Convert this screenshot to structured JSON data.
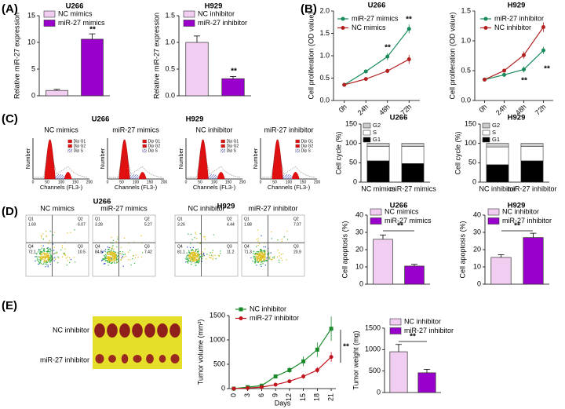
{
  "panel_labels": [
    "(A)",
    "(B)",
    "(C)",
    "(D)",
    "(E)"
  ],
  "chart_data": [
    {
      "type": "bar",
      "title": "U266",
      "y_label": "Relative miR-27 expression",
      "ylim": [
        0,
        15
      ],
      "yticks": [
        0,
        5,
        10,
        15
      ],
      "series": [
        {
          "name": "NC mimics",
          "color": "#f2cdf2",
          "values": [
            1.0
          ],
          "errors": [
            0.2
          ]
        },
        {
          "name": "miR-27 mimics",
          "color": "#9a00cc",
          "values": [
            10.6
          ],
          "errors": [
            1.0
          ]
        }
      ],
      "annotations": [
        "**"
      ]
    },
    {
      "type": "bar",
      "title": "H929",
      "y_label": "Relative miR-27 expression",
      "ylim": [
        0,
        1.5
      ],
      "yticks": [
        {
          "value": 0,
          "label": "0.0"
        },
        0.5,
        {
          "value": 1,
          "label": "1.0"
        },
        1.5
      ],
      "series": [
        {
          "name": "NC inhibitor",
          "color": "#f2cdf2",
          "values": [
            1.0
          ],
          "errors": [
            0.12
          ]
        },
        {
          "name": "miR-27 inhibitor",
          "color": "#9a00cc",
          "values": [
            0.32
          ],
          "errors": [
            0.04
          ]
        }
      ],
      "annotations": [
        "**"
      ]
    },
    {
      "type": "line",
      "title": "U266",
      "y_label": "Cell proliferation (OD value)",
      "categories": [
        "0h",
        "24h",
        "48h",
        "72h"
      ],
      "ylim": [
        0,
        2
      ],
      "yticks": [
        {
          "value": 0,
          "label": "0.0"
        },
        0.5,
        {
          "value": 1,
          "label": "1.0"
        },
        1.5,
        {
          "value": 2,
          "label": "2.0"
        }
      ],
      "series": [
        {
          "name": "miR-27 mimics",
          "color": "#1a8a5a",
          "marker": "circle",
          "values": [
            0.35,
            0.65,
            0.98,
            1.6
          ],
          "errors": [
            0.02,
            0.04,
            0.08,
            0.1
          ]
        },
        {
          "name": "NC mimics",
          "color": "#b22222",
          "marker": "circle",
          "values": [
            0.35,
            0.48,
            0.66,
            0.92
          ],
          "errors": [
            0.02,
            0.03,
            0.05,
            0.1
          ]
        }
      ],
      "annotations": [
        "**",
        "**"
      ]
    },
    {
      "type": "line",
      "title": "H929",
      "y_label": "Cell proliferation (OD value)",
      "categories": [
        "0h",
        "24h",
        "48h",
        "72h"
      ],
      "ylim": [
        0,
        1.5
      ],
      "yticks": [
        {
          "value": 0,
          "label": "0.0"
        },
        0.5,
        {
          "value": 1,
          "label": "1.0"
        },
        1.5
      ],
      "series": [
        {
          "name": "miR-27 inhibitor",
          "color": "#1a8a5a",
          "marker": "circle",
          "values": [
            0.35,
            0.43,
            0.52,
            0.84
          ],
          "errors": [
            0.02,
            0.03,
            0.05,
            0.06
          ]
        },
        {
          "name": "NC inhibitor",
          "color": "#b22222",
          "marker": "circle",
          "values": [
            0.35,
            0.5,
            0.76,
            1.23
          ],
          "errors": [
            0.02,
            0.03,
            0.06,
            0.08
          ]
        }
      ],
      "annotations": [
        "**",
        "**"
      ]
    },
    {
      "type": "stacked_bar",
      "title": "U266",
      "y_label": "Cell cycle (%)",
      "categories": [
        "NC mimics",
        "miR-27 mimics"
      ],
      "ylim": [
        0,
        150
      ],
      "yticks": [
        0,
        50,
        100,
        150
      ],
      "series": [
        {
          "name": "G2",
          "color": "#cccccc",
          "values": [
            8,
            8
          ]
        },
        {
          "name": "S",
          "color": "#ffffff",
          "values": [
            37,
            44
          ]
        },
        {
          "name": "G1",
          "color": "#000000",
          "values": [
            55,
            48
          ]
        }
      ]
    },
    {
      "type": "stacked_bar",
      "title": "H929",
      "y_label": "Cell cycle (%)",
      "categories": [
        "NC inhibitor",
        "miR-27 inhibitor"
      ],
      "ylim": [
        0,
        150
      ],
      "yticks": [
        0,
        50,
        100,
        150
      ],
      "series": [
        {
          "name": "G2",
          "color": "#cccccc",
          "values": [
            9,
            8
          ]
        },
        {
          "name": "S",
          "color": "#ffffff",
          "values": [
            46,
            37
          ]
        },
        {
          "name": "G1",
          "color": "#000000",
          "values": [
            45,
            55
          ]
        }
      ]
    },
    {
      "type": "bar",
      "title": "U266",
      "y_label": "Cell apoptosis (%)",
      "ylim": [
        0,
        40
      ],
      "yticks": [
        0,
        10,
        20,
        30,
        40
      ],
      "series": [
        {
          "name": "NC mimics",
          "color": "#f2cdf2",
          "values": [
            26
          ],
          "errors": [
            2.5
          ]
        },
        {
          "name": "miR-27 mimics",
          "color": "#9a00cc",
          "values": [
            10.5
          ],
          "errors": [
            1
          ]
        }
      ],
      "annotations": [
        "**"
      ]
    },
    {
      "type": "bar",
      "title": "H929",
      "y_label": "Cell apoptosis (%)",
      "ylim": [
        0,
        40
      ],
      "yticks": [
        0,
        10,
        20,
        30,
        40
      ],
      "series": [
        {
          "name": "NC inhibitor",
          "color": "#f2cdf2",
          "values": [
            15.5
          ],
          "errors": [
            1.5
          ]
        },
        {
          "name": "miR-27 inhibitor",
          "color": "#9a00cc",
          "values": [
            27
          ],
          "errors": [
            2.5
          ]
        }
      ],
      "annotations": [
        "**"
      ]
    },
    {
      "type": "line",
      "x_label": "Days",
      "y_label": "Tumor volume (mm³)",
      "x": [
        0,
        3,
        6,
        9,
        12,
        15,
        18,
        21
      ],
      "xlim": [
        -1,
        22
      ],
      "xticks": [
        0,
        3,
        6,
        9,
        12,
        15,
        18,
        21
      ],
      "ylim": [
        0,
        1500
      ],
      "yticks": [
        0,
        500,
        1000,
        1500
      ],
      "series": [
        {
          "name": "NC inhibitor",
          "color": "#1a8a2a",
          "marker": "square",
          "values": [
            0,
            30,
            60,
            250,
            380,
            560,
            800,
            1230
          ],
          "errors": [
            0,
            10,
            20,
            40,
            60,
            100,
            150,
            250
          ]
        },
        {
          "name": "miR-27 inhibitor",
          "color": "#c0141e",
          "marker": "circle",
          "values": [
            0,
            10,
            30,
            80,
            150,
            250,
            380,
            650
          ],
          "errors": [
            0,
            5,
            10,
            20,
            30,
            50,
            60,
            100
          ]
        }
      ],
      "annotations": [
        "**"
      ]
    },
    {
      "type": "bar",
      "y_label": "Tumor weight (mg)",
      "ylim": [
        0,
        1500
      ],
      "yticks": [
        0,
        500,
        1000,
        1500
      ],
      "series": [
        {
          "name": "NC inhibitor",
          "color": "#f2cdf2",
          "values": [
            950
          ],
          "errors": [
            170
          ]
        },
        {
          "name": "miR-27 inhibitor",
          "color": "#9a00cc",
          "values": [
            460
          ],
          "errors": [
            80
          ]
        }
      ],
      "annotations": [
        "**"
      ]
    }
  ],
  "cell_cycle_histograms": {
    "group_titles": [
      "U266",
      "H929"
    ],
    "plots": [
      "NC mimics",
      "miR-27 mimics",
      "NC inhibitor",
      "miR-27 inhibitor"
    ],
    "legend": [
      "Dip G1",
      "Dip G2",
      "Dip S"
    ],
    "x_ticks": [
      "0",
      "50",
      "100",
      "150",
      "200"
    ],
    "x_label": "Channels (FL3-)",
    "y_label": "Number"
  },
  "apoptosis_dot_plots": {
    "group_titles": [
      "U266",
      "H929"
    ],
    "quadrant_names": [
      "Q1",
      "Q2",
      "Q4",
      "Q3"
    ],
    "plots": [
      {
        "title": "NC mimics",
        "quadrant_values": [
          "1.60",
          "6.07",
          "72.1",
          "10.5"
        ]
      },
      {
        "title": "miR-27 mimics",
        "quadrant_values": [
          "3.28",
          "5.27",
          "84.6",
          "7.42"
        ]
      },
      {
        "title": "NC inhibitor",
        "quadrant_values": [
          "3.26",
          "4.44",
          "81.1",
          "11.2"
        ]
      },
      {
        "title": "miR-27 inhibitor",
        "quadrant_values": [
          "1.88",
          "7.07",
          "71.3",
          "20.9"
        ]
      }
    ]
  },
  "tumor_photo": {
    "row_labels": [
      "NC inhibitor",
      "miR-27 inhibitor"
    ]
  }
}
